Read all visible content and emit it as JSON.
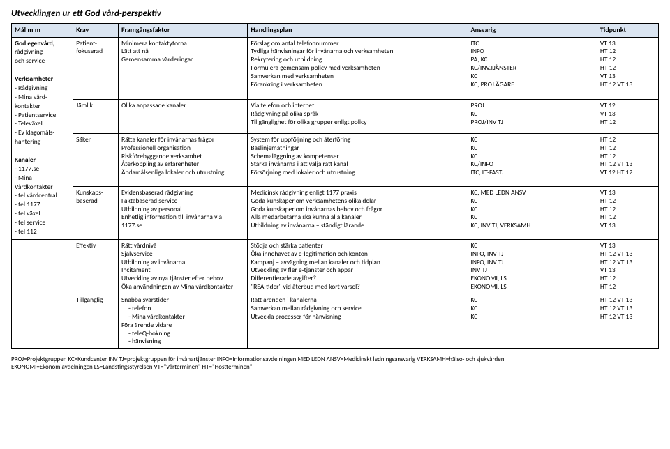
{
  "title": "Utvecklingen ur ett God vård-perspektiv",
  "headers": {
    "mal": "Mål m m",
    "krav": "Krav",
    "fram": "Framgångsfaktor",
    "hand": "Handlingsplan",
    "ansv": "Ansvarig",
    "tid": "Tidpunkt"
  },
  "mal_col": {
    "section1": [
      "God egenvård,",
      "rådgivning",
      "och service",
      "",
      "Verksamheter",
      "- Rådgivning",
      "- Mina vård-",
      "  kontakter",
      "- Patientservice",
      "- Televäxel",
      "- Ev klagomåls-",
      "  hantering",
      "",
      "Kanaler",
      "- 1177.se",
      "- Mina",
      "  Vårdkontakter",
      "- tel vårdcentral",
      "- tel 1177",
      "- tel växel",
      "- tel service",
      "- tel 112"
    ]
  },
  "rows": [
    {
      "krav": "Patient-\nfokuserad",
      "fram": "Minimera kontaktytorna\nLätt att nå\nGemensamma värderingar",
      "plan": [
        [
          "Förslag om antal telefonnummer",
          "ITC",
          "VT 13"
        ],
        [
          "Tydliga hänvisningar för invånarna och verksamheten",
          "INFO",
          "HT 12"
        ],
        [
          "Rekrytering och utbildning",
          "PA, KC",
          "HT 12"
        ],
        [
          "Formulera gemensam policy med verksamheten",
          "KC/INV.TJÄNSTER",
          "HT 12"
        ],
        [
          "Samverkan med verksamheten",
          "KC",
          "VT 13"
        ],
        [
          "Förankring i verksamheten",
          "KC, PROJ.ÄGARE",
          "HT 12 VT 13"
        ]
      ]
    },
    {
      "krav": "Jämlik",
      "fram": "Olika anpassade kanaler",
      "plan": [
        [
          "Via telefon och internet",
          "PROJ",
          "VT 12"
        ],
        [
          "Rådgivning på olika språk",
          "KC",
          "VT 13"
        ],
        [
          "Tillgänglighet för olika grupper enligt policy",
          "PROJ/INV TJ",
          "HT 12"
        ]
      ]
    },
    {
      "krav": "Säker",
      "fram": "Rätta kanaler för invånarnas frågor\nProfessionell organisation\nRiskförebyggande verksamhet\nÅterkoppling av erfarenheter\nÄndamålsenliga lokaler och utrustning",
      "plan": [
        [
          "System för uppföljning och återföring",
          "KC",
          "HT 12"
        ],
        [
          "Baslinjemätningar",
          "KC",
          "HT 12"
        ],
        [
          "Schemaläggning av kompetenser",
          "KC",
          "HT 12"
        ],
        [
          "Stärka invånarna i att välja rätt kanal",
          "KC/INFO",
          "HT 12 VT 13"
        ],
        [
          "Försörjning med lokaler och utrustning",
          "ITC, LT-FAST.",
          "VT 12 HT 12"
        ]
      ]
    },
    {
      "krav": "Kunskaps-\nbaserad",
      "fram": "Evidensbaserad rådgivning\nFaktabaserad service\nUtbildning av personal\nEnhetlig information till invånarna via 1177.se",
      "plan": [
        [
          "Medicinsk rådgivning enligt 1177 praxis",
          "KC, MED LEDN ANSV",
          "VT 13"
        ],
        [
          "Goda kunskaper om verksamhetens olika delar",
          "KC",
          "HT 12"
        ],
        [
          "Goda kunskaper om invånarnas behov och frågor",
          "KC",
          "HT 12"
        ],
        [
          "Alla medarbetarna ska kunna alla kanaler",
          "KC",
          "HT 12"
        ],
        [
          "Utbildning av invånarna – ständigt lärande",
          "KC, INV TJ, VERKSAMH",
          "VT 13"
        ]
      ]
    },
    {
      "krav": "Effektiv",
      "fram": "Rätt vårdnivå\nSjälvservice\nUtbildning av invånarna\nIncitament\nUtveckling av nya tjänster efter behov\nÖka användningen av Mina vårdkontakter",
      "plan": [
        [
          "Stödja och stärka patienter",
          "KC",
          "VT 13"
        ],
        [
          "Öka innehavet av e-legitimation och konton",
          "INFO, INV TJ",
          "HT 12 VT 13"
        ],
        [
          "Kampanj – avvägning mellan kanaler och tidplan",
          "INFO, INV TJ",
          "HT 12 VT 13"
        ],
        [
          "Utveckling av fler e-tjänster och appar",
          "INV TJ",
          "VT 13"
        ],
        [
          "Differentierade avgifter?",
          "EKONOMI, LS",
          "HT 12"
        ],
        [
          "\"REA-tider\" vid återbud med kort varsel?",
          "EKONOMI, LS",
          "HT 12"
        ]
      ]
    },
    {
      "krav": "Tillgänglig",
      "fram_lines": [
        "Snabba svarstider",
        "-   telefon",
        "-   Mina vårdkontakter",
        "Föra ärende vidare",
        "-   teleQ-bokning",
        "-   hänvisning"
      ],
      "plan": [
        [
          "Rätt ärenden i kanalerna",
          "KC",
          "HT 12 VT 13"
        ],
        [
          "Samverkan mellan rådgivning och service",
          "KC",
          "HT 12 VT 13"
        ],
        [
          "Utveckla processer för hänvisning",
          "KC",
          "HT 12 VT 13"
        ]
      ]
    }
  ],
  "footnote": "PROJ=Projektgruppen    KC=Kundcenter    INV TJ=projektgruppen för invånartjänster    INFO=Informationsavdelningen    MED LEDN ANSV=Medicinskt ledningsansvarig    VERKSAMH=hälso- och sjukvården\nEKONOMI=Ekonomiavdelningen    LS=Landstingsstyrelsen    VT=\"Vårterminen\"    HT=\"Höstterminen\""
}
